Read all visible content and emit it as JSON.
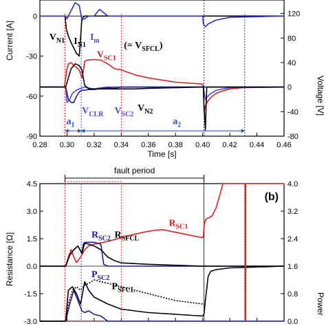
{
  "chart_data": [
    {
      "id": "a",
      "type": "line",
      "xlabel": "Time [s]",
      "ylabel_left": "Current [A]",
      "ylabel_right": "Voltage [V]",
      "x_ticks": [
        "0.28",
        "0.30",
        "0.32",
        "0.34",
        "0.36",
        "0.38",
        "0.40",
        "0.42",
        "0.44",
        "0.46"
      ],
      "left_ticks": [
        "0",
        "-30",
        "-60",
        "-90"
      ],
      "right_ticks": [
        "120",
        "80",
        "40",
        "0",
        "-40",
        "-80"
      ],
      "xlim": [
        0.28,
        0.46
      ],
      "ylim_left": [
        -90,
        12
      ],
      "ylim_right": [
        -80,
        142
      ],
      "grid": false,
      "series": [
        {
          "name": "I_N1",
          "axis": "left",
          "color": "#000000",
          "x": [
            0.28,
            0.2985,
            0.2995,
            0.301,
            0.303,
            0.305,
            0.307,
            0.309,
            0.311,
            0.313,
            0.32,
            0.33,
            0.34,
            0.36,
            0.38,
            0.4,
            0.4005,
            0.401,
            0.402,
            0.404,
            0.41,
            0.42,
            0.46
          ],
          "y": [
            0,
            0,
            -10,
            -15,
            -20,
            -24,
            -28,
            -30,
            -2,
            0,
            0,
            0,
            0,
            0,
            0,
            0,
            0,
            0,
            0,
            0,
            0,
            0,
            0
          ]
        },
        {
          "name": "I_m",
          "axis": "left",
          "color": "#2f2fd0",
          "x": [
            0.28,
            0.2985,
            0.3,
            0.303,
            0.306,
            0.309,
            0.311,
            0.313,
            0.316,
            0.32,
            0.324,
            0.33,
            0.34,
            0.36,
            0.4,
            0.4005,
            0.402,
            0.404,
            0.41,
            0.42,
            0.46
          ],
          "y": [
            0,
            0,
            -2,
            4,
            10,
            8,
            -3,
            -2,
            0,
            0,
            5,
            0,
            0,
            0,
            0,
            -6,
            -8,
            -6,
            -3,
            -1,
            0
          ]
        },
        {
          "name": "V_SC1 (= V_SFCL)",
          "axis": "right",
          "color": "#e02020",
          "x": [
            0.28,
            0.298,
            0.3,
            0.301,
            0.303,
            0.305,
            0.307,
            0.309,
            0.311,
            0.312,
            0.313,
            0.315,
            0.32,
            0.325,
            0.33,
            0.335,
            0.34,
            0.35,
            0.36,
            0.38,
            0.4,
            0.4005,
            0.401,
            0.402,
            0.404,
            0.407,
            0.41,
            0.415,
            0.42,
            0.43,
            0.46
          ],
          "y": [
            0,
            0,
            30,
            38,
            40,
            35,
            32,
            28,
            15,
            25,
            42,
            44,
            45,
            44,
            38,
            30,
            28,
            20,
            15,
            8,
            5,
            0,
            -40,
            -30,
            -22,
            -15,
            -10,
            -6,
            -3,
            -1,
            0
          ]
        },
        {
          "name": "V_CLR",
          "axis": "right",
          "color": "#4a4ad8",
          "x": [
            0.28,
            0.299,
            0.3,
            0.302,
            0.304,
            0.307,
            0.31,
            0.313,
            0.317,
            0.32,
            0.325,
            0.33,
            0.34,
            0.36,
            0.4,
            0.4005,
            0.402,
            0.405,
            0.41,
            0.42,
            0.46
          ],
          "y": [
            0,
            0,
            -25,
            -20,
            -10,
            -5,
            -2,
            0,
            -2,
            -3,
            -1,
            0,
            0,
            0,
            0,
            0,
            -20,
            -12,
            -5,
            -1,
            0
          ]
        },
        {
          "name": "V_SC2",
          "axis": "right",
          "color": "#1a1aa0",
          "x": [
            0.28,
            0.299,
            0.301,
            0.303,
            0.305,
            0.307,
            0.309,
            0.311,
            0.313,
            0.316,
            0.32,
            0.323,
            0.326,
            0.33,
            0.335,
            0.34,
            0.35,
            0.36,
            0.4,
            0.46
          ],
          "y": [
            0,
            0,
            -20,
            -25,
            -25,
            -15,
            -8,
            -5,
            -5,
            -4,
            -4,
            -3,
            -2,
            -1,
            -2,
            0,
            0,
            0,
            0,
            0
          ]
        },
        {
          "name": "V_N2",
          "axis": "right",
          "color": "#000000",
          "x": [
            0.28,
            0.299,
            0.301,
            0.303,
            0.306,
            0.309,
            0.311,
            0.313,
            0.316,
            0.32,
            0.325,
            0.33,
            0.34,
            0.35,
            0.36,
            0.4,
            0.4005,
            0.401,
            0.402,
            0.403,
            0.46
          ],
          "y": [
            0,
            0,
            15,
            30,
            38,
            35,
            28,
            3,
            -3,
            -3,
            -3,
            -3,
            -3,
            -3,
            -2,
            0,
            0,
            -30,
            -70,
            0,
            0
          ]
        }
      ],
      "annotations": [
        {
          "text": "V",
          "sub": "N1",
          "color": "#000000",
          "x": 0.287,
          "y_left": -18
        },
        {
          "text": "I",
          "sub": "N1",
          "color": "#000000",
          "x": 0.305,
          "y_left": -21
        },
        {
          "text": "I",
          "sub": "m",
          "color": "#4a4ad8",
          "x": 0.317,
          "y_left": -18
        },
        {
          "text": "V",
          "sub": "SC1",
          "color": "#e02020",
          "x": 0.322,
          "y_left": -31
        },
        {
          "text": "(= V",
          "sub": "SFCL",
          "tail": ")",
          "color": "#000000",
          "x": 0.342,
          "y_left": -24
        },
        {
          "text": "V",
          "sub": "CLR",
          "color": "#4a4ad8",
          "x": 0.311,
          "y_left": -73
        },
        {
          "text": "V",
          "sub": "SC2",
          "color": "#4a4ad8",
          "x": 0.335,
          "y_left": -73
        },
        {
          "text": "V",
          "sub": "N2",
          "color": "#000000",
          "x": 0.352,
          "y_left": -71
        },
        {
          "text": "a",
          "sub": "1",
          "color": "#2050c0",
          "x": 0.2995,
          "y_left": -81
        },
        {
          "text": "a",
          "sub": "2",
          "color": "#2050c0",
          "x": 0.378,
          "y_left": -81
        }
      ]
    },
    {
      "id": "b",
      "type": "line",
      "label": "(b)",
      "xlabel": "",
      "ylabel_left": "Resistance [Ω]",
      "ylabel_right": "Power",
      "left_ticks": [
        "4.5",
        "3.0",
        "1.5",
        "0.0",
        "-1.5",
        "-3.0"
      ],
      "right_ticks": [
        "4.0",
        "3.2",
        "2.4",
        "1.6",
        "0.8",
        "0.0"
      ],
      "ylim_left": [
        -3.0,
        4.5
      ],
      "ylim_right": [
        0.0,
        4.0
      ],
      "header_text": "fault period",
      "grid": false,
      "series": [
        {
          "name": "R_SC1",
          "axis": "left",
          "color": "#e02020",
          "x": [
            0.28,
            0.299,
            0.301,
            0.303,
            0.305,
            0.307,
            0.31,
            0.313,
            0.316,
            0.32,
            0.33,
            0.34,
            0.35,
            0.36,
            0.37,
            0.38,
            0.39,
            0.4,
            0.4005,
            0.401,
            0.402,
            0.403,
            0.405,
            0.407,
            0.41,
            0.415,
            0.42,
            0.46
          ],
          "y": [
            0,
            0,
            0.5,
            0.9,
            0.5,
            0.2,
            0.5,
            0.9,
            1.1,
            1.2,
            1.35,
            1.55,
            1.75,
            1.9,
            2.0,
            1.85,
            1.7,
            1.55,
            1.6,
            2.2,
            2.5,
            2.6,
            2.65,
            2.75,
            3.2,
            4.5,
            4.5,
            4.5
          ]
        },
        {
          "name": "R_SC2",
          "axis": "left",
          "color": "#1a1aa0",
          "x": [
            0.28,
            0.299,
            0.302,
            0.305,
            0.308,
            0.311,
            0.312,
            0.313,
            0.316,
            0.32,
            0.325,
            0.327,
            0.33,
            0.34,
            0.46
          ],
          "y": [
            0,
            0,
            0.6,
            0.9,
            1.1,
            0.7,
            1.2,
            1.3,
            1.3,
            1.3,
            1.2,
            0.1,
            0,
            0,
            0
          ]
        },
        {
          "name": "R_SFCL",
          "axis": "left",
          "color": "#000000",
          "x": [
            0.28,
            0.299,
            0.302,
            0.305,
            0.308,
            0.311,
            0.313,
            0.316,
            0.32,
            0.325,
            0.33,
            0.335,
            0.34,
            0.36,
            0.4,
            0.46
          ],
          "y": [
            0,
            0,
            0.6,
            0.9,
            1.1,
            0.7,
            1.25,
            1.2,
            1.1,
            0.9,
            0.5,
            0.3,
            0.18,
            0.1,
            0,
            0
          ]
        },
        {
          "name": "P_SC2",
          "axis": "right",
          "color": "#1a1aa0",
          "x": [
            0.28,
            0.299,
            0.302,
            0.305,
            0.308,
            0.311,
            0.313,
            0.316,
            0.32,
            0.325,
            0.33,
            0.46
          ],
          "y": [
            0,
            0,
            0.5,
            0.9,
            0.6,
            0.3,
            0.25,
            0.3,
            0.2,
            0.15,
            0,
            0
          ]
        },
        {
          "name": "P_SFCL",
          "axis": "right",
          "color": "#000000",
          "x": [
            0.28,
            0.299,
            0.301,
            0.304,
            0.307,
            0.31,
            0.313,
            0.316,
            0.32,
            0.33,
            0.34,
            0.36,
            0.38,
            0.4,
            0.401,
            0.402,
            0.404,
            0.406,
            0.41,
            0.42,
            0.46
          ],
          "y": [
            0,
            0,
            0.9,
            1.0,
            0.8,
            0.5,
            1.15,
            0.9,
            0.7,
            0.5,
            0.35,
            0.25,
            0.2,
            0.15,
            0.2,
            0.6,
            1.3,
            1.45,
            1.5,
            1.55,
            1.6
          ]
        },
        {
          "name": "P_SC1",
          "axis": "right",
          "color": "#000000",
          "dashed": true,
          "x": [
            0.28,
            0.299,
            0.301,
            0.304,
            0.307,
            0.31,
            0.313,
            0.316,
            0.32,
            0.33,
            0.34,
            0.36,
            0.38,
            0.4
          ],
          "y": [
            0,
            0,
            0.5,
            0.9,
            1.0,
            0.9,
            1.05,
            1.1,
            1.2,
            1.1,
            1.0,
            0.8,
            0.6,
            0.5
          ]
        }
      ],
      "annotations": [
        {
          "text": "R",
          "sub": "SC1",
          "color": "#e02020",
          "x": 0.375,
          "y_left": 2.2
        },
        {
          "text": "R",
          "sub": "SC2",
          "color": "#1a1aa0",
          "x": 0.318,
          "y_left": 1.55
        },
        {
          "text": "R",
          "sub": "SFCL",
          "color": "#000000",
          "x": 0.335,
          "y_left": 1.55
        },
        {
          "text": "P",
          "sub": "SC2",
          "color": "#1a1aa0",
          "x": 0.318,
          "y_left": -0.6
        },
        {
          "text": "P",
          "sub": "SFCL",
          "color": "#000000",
          "x": 0.333,
          "y_left": -1.25
        }
      ]
    }
  ]
}
